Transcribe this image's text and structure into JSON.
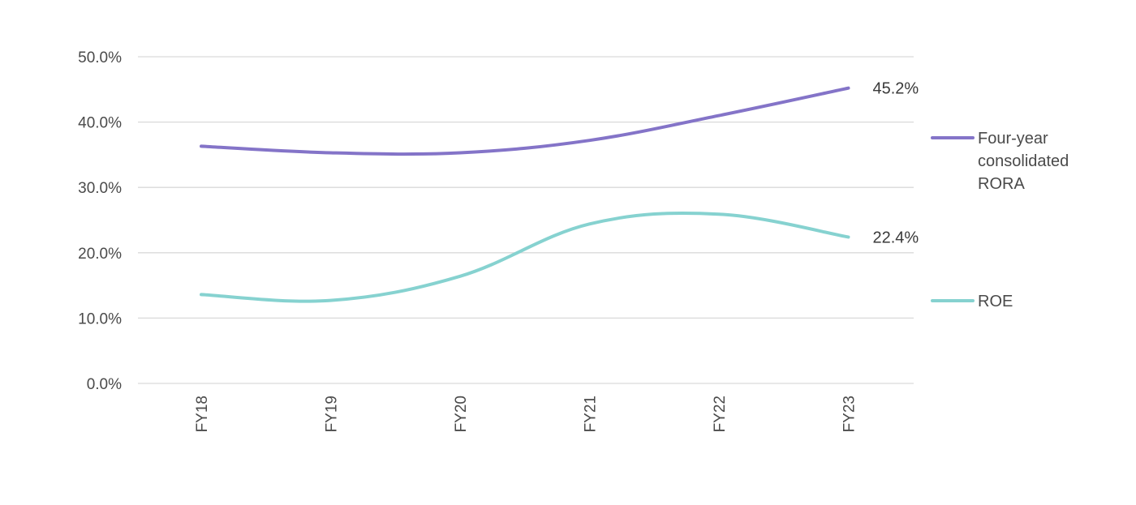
{
  "chart_data": {
    "type": "line",
    "categories": [
      "FY18",
      "FY19",
      "FY20",
      "FY21",
      "FY22",
      "FY23"
    ],
    "ylim": [
      0,
      50
    ],
    "yticks": [
      "0.0%",
      "10.0%",
      "20.0%",
      "30.0%",
      "40.0%",
      "50.0%"
    ],
    "grid": true,
    "legend_position": "right",
    "series": [
      {
        "name": "Four-year consolidated RORA",
        "legend_lines": [
          "Four-year",
          "consolidated",
          "RORA"
        ],
        "color": "#8474c8",
        "values": [
          36.3,
          35.3,
          35.3,
          37.2,
          41.0,
          45.2
        ],
        "end_label": "45.2%"
      },
      {
        "name": "ROE",
        "legend_lines": [
          "ROE"
        ],
        "color": "#86d2d0",
        "values": [
          13.6,
          12.7,
          16.4,
          24.4,
          25.9,
          22.4
        ],
        "end_label": "22.4%"
      }
    ]
  }
}
